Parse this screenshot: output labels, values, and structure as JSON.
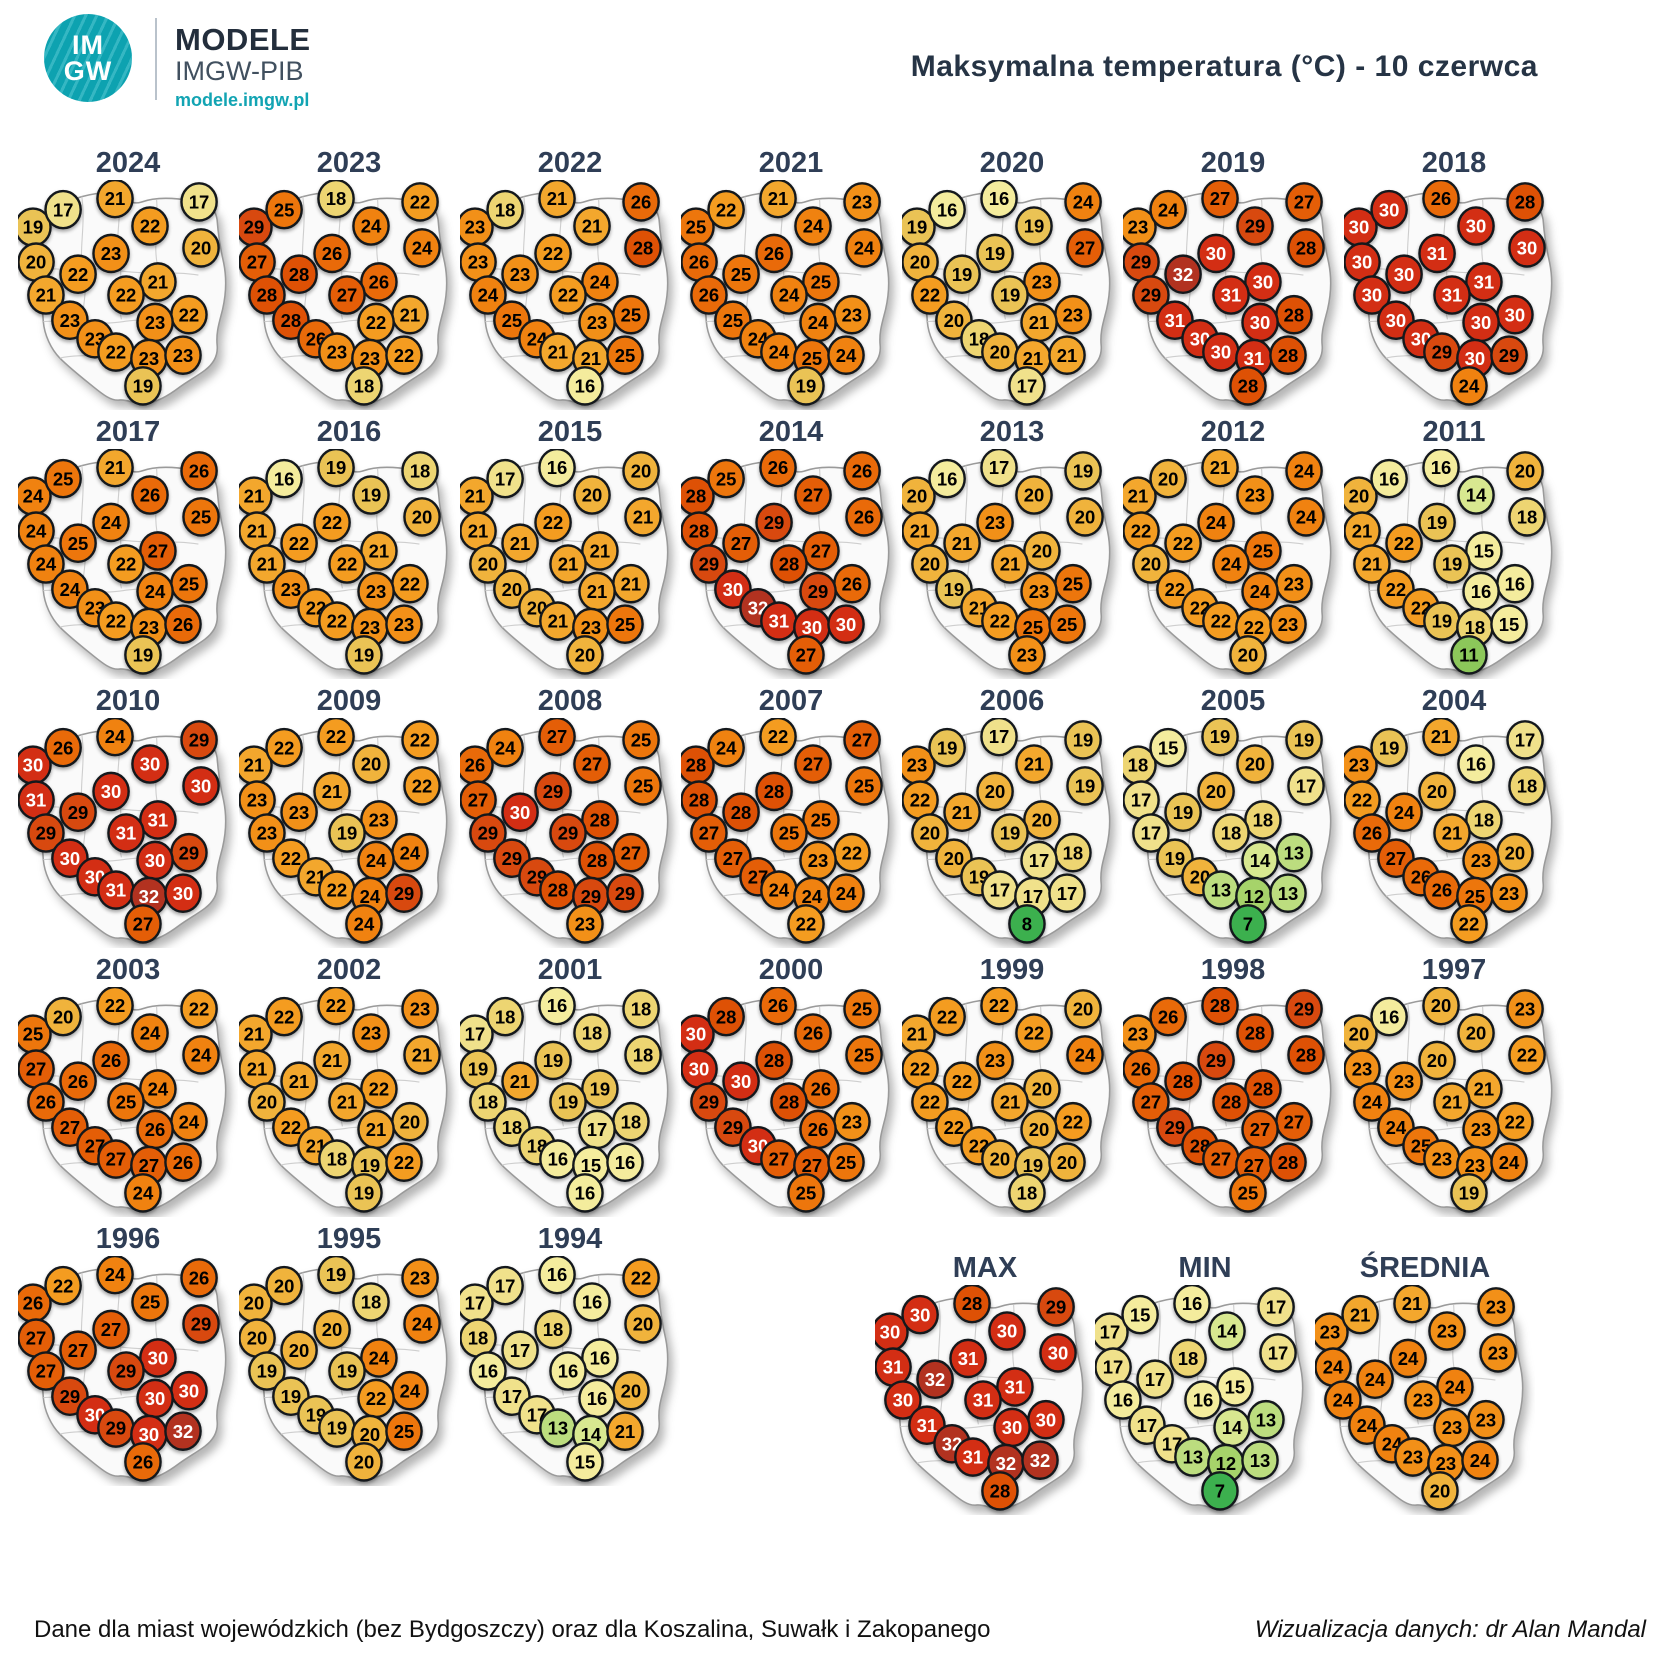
{
  "header": {
    "logo_line1": "IM",
    "logo_line2": "GW",
    "brand": "MODELE",
    "brand_sub": "IMGW-PIB",
    "brand_url": "modele.imgw.pl",
    "title": "Maksymalna temperatura (°C) - 10 czerwca"
  },
  "footer": {
    "left": "Dane dla miast wojewódzkich (bez Bydgoszczy) oraz dla Koszalina, Suwałk i Zakopanego",
    "right": "Wizualizacja danych: dr Alan Mandal"
  },
  "chart_data": {
    "type": "heatmap",
    "subtype": "small-multiple-maps",
    "title": "Maksymalna temperatura (°C) - 10 czerwca",
    "unit": "°C",
    "points_per_map": 20,
    "color_scale": [
      {
        "max": 8,
        "fill": "#3cb04e",
        "text": "#000000"
      },
      {
        "max": 11,
        "fill": "#8cc75a",
        "text": "#000000"
      },
      {
        "max": 12,
        "fill": "#a6d36a",
        "text": "#000000"
      },
      {
        "max": 13,
        "fill": "#bcdd7f",
        "text": "#000000"
      },
      {
        "max": 14,
        "fill": "#d8e890",
        "text": "#000000"
      },
      {
        "max": 16,
        "fill": "#f4ec9d",
        "text": "#000000"
      },
      {
        "max": 17,
        "fill": "#f0e18b",
        "text": "#000000"
      },
      {
        "max": 18,
        "fill": "#edd572",
        "text": "#000000"
      },
      {
        "max": 19,
        "fill": "#eac355",
        "text": "#000000"
      },
      {
        "max": 20,
        "fill": "#f0b33c",
        "text": "#000000"
      },
      {
        "max": 21,
        "fill": "#f3a72d",
        "text": "#000000"
      },
      {
        "max": 22,
        "fill": "#f49c20",
        "text": "#000000"
      },
      {
        "max": 23,
        "fill": "#f29018",
        "text": "#000000"
      },
      {
        "max": 24,
        "fill": "#f08210",
        "text": "#000000"
      },
      {
        "max": 25,
        "fill": "#ed760c",
        "text": "#000000"
      },
      {
        "max": 26,
        "fill": "#e96a09",
        "text": "#000000"
      },
      {
        "max": 27,
        "fill": "#e45e07",
        "text": "#000000"
      },
      {
        "max": 28,
        "fill": "#de5105",
        "text": "#000000"
      },
      {
        "max": 29,
        "fill": "#d8490f",
        "text": "#000000"
      },
      {
        "max": 31,
        "fill": "#d32e14",
        "text": "#ffffff"
      },
      {
        "max": 99,
        "fill": "#b23220",
        "text": "#ffffff"
      }
    ],
    "year_maps": [
      {
        "label": "2024",
        "values": [
          19,
          17,
          21,
          22,
          17,
          20,
          20,
          23,
          22,
          21,
          21,
          22,
          22,
          23,
          23,
          23,
          22,
          23,
          23,
          19
        ]
      },
      {
        "label": "2023",
        "values": [
          29,
          25,
          18,
          24,
          22,
          24,
          27,
          26,
          28,
          26,
          28,
          27,
          21,
          28,
          22,
          26,
          23,
          23,
          22,
          18
        ]
      },
      {
        "label": "2022",
        "values": [
          23,
          18,
          21,
          21,
          26,
          28,
          23,
          22,
          23,
          24,
          24,
          22,
          25,
          25,
          23,
          24,
          21,
          21,
          25,
          16
        ]
      },
      {
        "label": "2021",
        "values": [
          25,
          22,
          21,
          24,
          23,
          24,
          26,
          26,
          25,
          25,
          26,
          24,
          23,
          25,
          24,
          24,
          24,
          25,
          24,
          19
        ]
      },
      {
        "label": "2020",
        "values": [
          19,
          16,
          16,
          19,
          24,
          27,
          20,
          19,
          19,
          23,
          22,
          19,
          23,
          20,
          21,
          18,
          20,
          21,
          21,
          17
        ]
      },
      {
        "label": "2019",
        "values": [
          23,
          24,
          27,
          29,
          27,
          28,
          29,
          30,
          32,
          30,
          29,
          31,
          28,
          31,
          30,
          30,
          30,
          31,
          28,
          28
        ]
      },
      {
        "label": "2018",
        "values": [
          30,
          30,
          26,
          30,
          28,
          30,
          30,
          31,
          30,
          31,
          30,
          31,
          30,
          30,
          30,
          30,
          29,
          30,
          29,
          24
        ]
      },
      {
        "label": "2017",
        "values": [
          24,
          25,
          21,
          26,
          26,
          25,
          24,
          24,
          25,
          27,
          24,
          22,
          25,
          24,
          24,
          23,
          22,
          23,
          26,
          19
        ]
      },
      {
        "label": "2016",
        "values": [
          21,
          16,
          19,
          19,
          18,
          20,
          21,
          22,
          22,
          21,
          21,
          22,
          22,
          23,
          23,
          22,
          22,
          23,
          23,
          19
        ]
      },
      {
        "label": "2015",
        "values": [
          21,
          17,
          16,
          20,
          20,
          21,
          21,
          22,
          21,
          21,
          20,
          21,
          21,
          20,
          21,
          20,
          21,
          23,
          25,
          20
        ]
      },
      {
        "label": "2014",
        "values": [
          28,
          25,
          26,
          27,
          26,
          26,
          28,
          29,
          27,
          27,
          29,
          28,
          26,
          30,
          29,
          32,
          31,
          30,
          30,
          27
        ]
      },
      {
        "label": "2013",
        "values": [
          20,
          16,
          17,
          20,
          19,
          20,
          21,
          23,
          21,
          20,
          20,
          21,
          25,
          19,
          23,
          21,
          22,
          25,
          25,
          23
        ]
      },
      {
        "label": "2012",
        "values": [
          21,
          20,
          21,
          23,
          24,
          24,
          22,
          24,
          22,
          25,
          20,
          24,
          23,
          22,
          24,
          22,
          22,
          22,
          23,
          20
        ]
      },
      {
        "label": "2011",
        "values": [
          20,
          16,
          16,
          14,
          20,
          18,
          21,
          19,
          22,
          15,
          21,
          19,
          16,
          22,
          16,
          22,
          19,
          18,
          15,
          11
        ]
      },
      {
        "label": "2010",
        "values": [
          30,
          26,
          24,
          30,
          29,
          30,
          31,
          30,
          29,
          31,
          29,
          31,
          29,
          30,
          30,
          30,
          31,
          32,
          30,
          27
        ]
      },
      {
        "label": "2009",
        "values": [
          21,
          22,
          22,
          20,
          22,
          22,
          23,
          21,
          23,
          23,
          23,
          19,
          24,
          22,
          24,
          21,
          22,
          24,
          29,
          24
        ]
      },
      {
        "label": "2008",
        "values": [
          26,
          24,
          27,
          27,
          25,
          25,
          27,
          29,
          30,
          28,
          29,
          29,
          27,
          29,
          28,
          29,
          28,
          29,
          29,
          23
        ]
      },
      {
        "label": "2007",
        "values": [
          28,
          24,
          22,
          27,
          27,
          25,
          28,
          28,
          28,
          25,
          27,
          25,
          22,
          27,
          23,
          27,
          24,
          24,
          24,
          22
        ]
      },
      {
        "label": "2006",
        "values": [
          23,
          19,
          17,
          21,
          19,
          19,
          22,
          20,
          21,
          20,
          20,
          19,
          18,
          20,
          17,
          19,
          17,
          17,
          17,
          8
        ]
      },
      {
        "label": "2005",
        "values": [
          18,
          15,
          19,
          20,
          19,
          17,
          17,
          20,
          19,
          18,
          17,
          18,
          13,
          19,
          14,
          20,
          13,
          12,
          13,
          7
        ]
      },
      {
        "label": "2004",
        "values": [
          23,
          19,
          21,
          16,
          17,
          18,
          22,
          20,
          24,
          18,
          26,
          21,
          20,
          27,
          23,
          26,
          26,
          25,
          23,
          22
        ]
      },
      {
        "label": "2003",
        "values": [
          25,
          20,
          22,
          24,
          22,
          24,
          27,
          26,
          26,
          24,
          26,
          25,
          24,
          27,
          26,
          27,
          27,
          27,
          26,
          24
        ]
      },
      {
        "label": "2002",
        "values": [
          21,
          22,
          22,
          23,
          23,
          21,
          21,
          21,
          21,
          22,
          20,
          21,
          20,
          22,
          21,
          21,
          18,
          19,
          22,
          19
        ]
      },
      {
        "label": "2001",
        "values": [
          17,
          18,
          16,
          18,
          18,
          18,
          19,
          19,
          21,
          19,
          18,
          19,
          18,
          18,
          17,
          18,
          16,
          15,
          16,
          16
        ]
      },
      {
        "label": "2000",
        "values": [
          30,
          28,
          26,
          26,
          25,
          25,
          30,
          28,
          30,
          26,
          29,
          28,
          23,
          29,
          26,
          30,
          27,
          27,
          25,
          25
        ]
      },
      {
        "label": "1999",
        "values": [
          21,
          22,
          22,
          22,
          20,
          24,
          22,
          23,
          22,
          20,
          22,
          21,
          22,
          22,
          20,
          22,
          20,
          19,
          20,
          18
        ]
      },
      {
        "label": "1998",
        "values": [
          23,
          26,
          28,
          28,
          29,
          28,
          26,
          29,
          28,
          28,
          27,
          28,
          27,
          29,
          27,
          28,
          27,
          27,
          28,
          25
        ]
      },
      {
        "label": "1997",
        "values": [
          20,
          16,
          20,
          20,
          23,
          22,
          23,
          20,
          23,
          21,
          24,
          21,
          22,
          24,
          23,
          25,
          23,
          23,
          24,
          19
        ]
      },
      {
        "label": "1996",
        "values": [
          26,
          22,
          24,
          25,
          26,
          29,
          27,
          27,
          27,
          30,
          27,
          29,
          30,
          29,
          30,
          30,
          29,
          30,
          32,
          26
        ]
      },
      {
        "label": "1995",
        "values": [
          20,
          20,
          19,
          18,
          23,
          24,
          20,
          20,
          20,
          24,
          19,
          19,
          24,
          19,
          22,
          19,
          19,
          20,
          25,
          20
        ]
      },
      {
        "label": "1994",
        "values": [
          17,
          17,
          16,
          16,
          22,
          20,
          18,
          18,
          17,
          16,
          16,
          16,
          20,
          17,
          16,
          17,
          13,
          14,
          21,
          15
        ]
      }
    ],
    "summary_maps": [
      {
        "label": "MAX",
        "values": [
          30,
          30,
          28,
          30,
          29,
          30,
          31,
          31,
          32,
          31,
          30,
          31,
          30,
          31,
          30,
          32,
          31,
          32,
          32,
          28
        ]
      },
      {
        "label": "MIN",
        "values": [
          17,
          15,
          16,
          14,
          17,
          17,
          17,
          18,
          17,
          15,
          16,
          16,
          13,
          17,
          14,
          17,
          13,
          12,
          13,
          7
        ]
      },
      {
        "label": "ŚREDNIA",
        "values": [
          23,
          21,
          21,
          23,
          23,
          23,
          24,
          24,
          24,
          24,
          24,
          23,
          23,
          24,
          23,
          24,
          23,
          23,
          24,
          20
        ]
      }
    ]
  }
}
